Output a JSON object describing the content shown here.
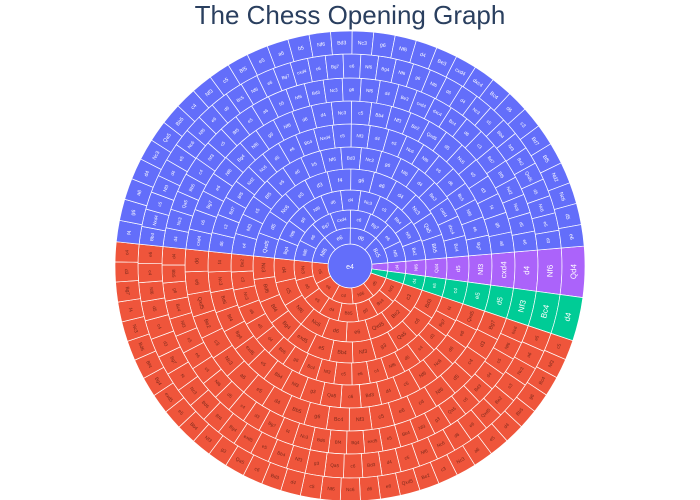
{
  "chart_data": {
    "type": "sunburst",
    "title": "The Chess Opening Graph",
    "root": "e4",
    "colors": {
      "black": "#636efa",
      "white": "#ef553b",
      "draw": "#00cc96",
      "other": "#ab63fa"
    },
    "branches": [
      {
        "name": "blue",
        "color_key": "black",
        "share": 0.47,
        "labels": [
          "Nf6",
          "e6",
          "d6",
          "Bc5",
          "Nf6",
          "e6",
          "Bg7",
          "cxd4",
          "c6",
          "Bg7",
          "e6",
          "Nf6",
          "Bg4",
          "Nf6",
          "g6",
          "Nf6",
          "d6",
          "d4",
          "Nc3",
          "c5",
          "Bb4",
          "Nf3",
          "Be2",
          "Qxd5",
          "d5",
          "Nc6",
          "e5",
          "d3",
          "f4",
          "g6",
          "a6",
          "d4",
          "Nc3",
          "Qa5",
          "Bb5",
          "c4",
          "Nf3",
          "c5",
          "Bf5",
          "e5",
          "a6",
          "b5",
          "Nf6",
          "Bd3",
          "Nc3",
          "g6",
          "Nf6",
          "d4",
          "Be3",
          "cxd4",
          "dxc4",
          "Bc4",
          "d6",
          "c3",
          "Bd7",
          "Bf5",
          "Nd2",
          "Nc6",
          "d5",
          "e6",
          "Bb4",
          "Nxd4",
          "c5",
          "Nf3",
          "d4",
          "e5",
          "Nc6"
        ]
      },
      {
        "name": "green",
        "color_key": "draw",
        "share": 0.03,
        "labels": [
          "d4",
          "e5",
          "c4",
          "e5",
          "d5",
          "Nf3",
          "Bc4"
        ]
      },
      {
        "name": "purple",
        "color_key": "other",
        "share": 0.035,
        "labels": [
          "d4",
          "Nf6",
          "Qd4",
          "d5",
          "Nf3",
          "cxd4"
        ]
      },
      {
        "name": "red",
        "color_key": "white",
        "share": 0.465,
        "labels": [
          "d5",
          "Nf6",
          "c4",
          "e6",
          "c5",
          "Nf3",
          "Bc4",
          "g6",
          "Bb5",
          "d4",
          "e5",
          "a6",
          "Nc3",
          "c3",
          "Be2",
          "Qxd5",
          "e6",
          "d6",
          "Nc6",
          "Nf6",
          "c5",
          "d4",
          "Bd3",
          "c6",
          "Qa5",
          "g3",
          "Nf3",
          "Bb4",
          "e5",
          "exd5",
          "Bg4",
          "Bf4",
          "Bd6",
          "Nc3",
          "f4",
          "Bg7",
          "d3",
          "c4"
        ]
      }
    ],
    "center_label": "e4"
  }
}
